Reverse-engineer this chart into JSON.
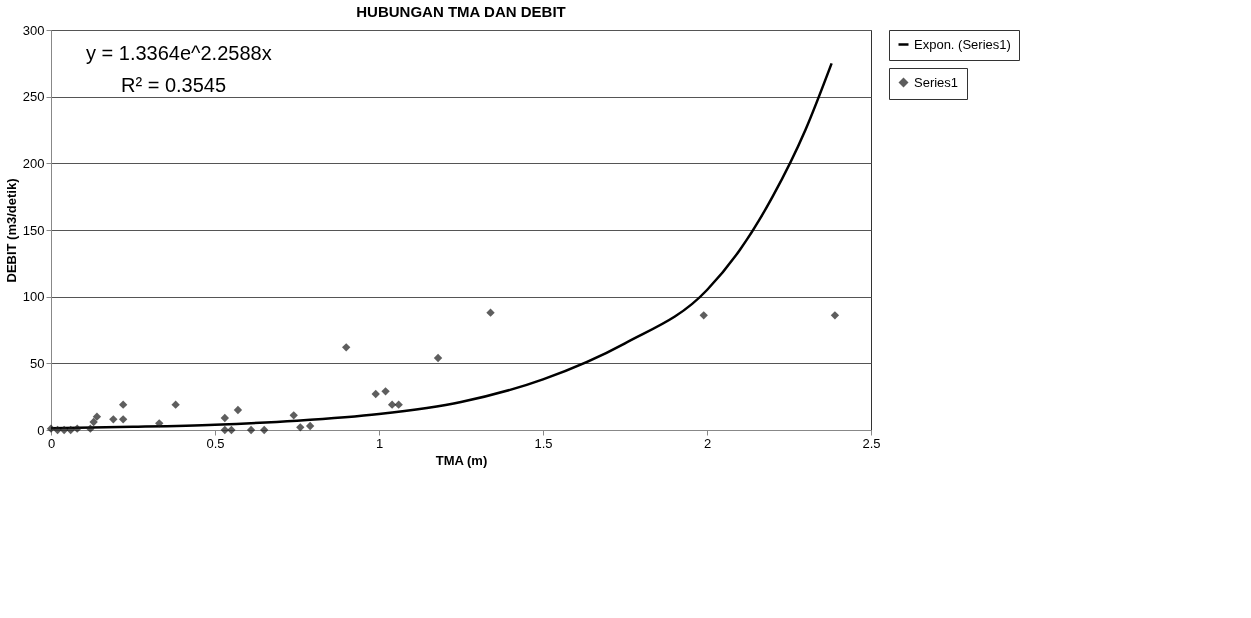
{
  "chart_data": {
    "type": "scatter",
    "title": "HUBUNGAN TMA DAN DEBIT",
    "xlabel": "TMA (m)",
    "ylabel": "DEBIT (m3/detik)",
    "xlim": [
      0,
      2.5
    ],
    "xticks": [
      0,
      0.5,
      1,
      1.5,
      2,
      2.5
    ],
    "ylim": [
      0,
      300
    ],
    "yticks": [
      0,
      50,
      100,
      150,
      200,
      250,
      300
    ],
    "grid": "y",
    "legend": "right",
    "annotations": [
      "y = 1.3364e^2.2588x",
      "R² = 0.3545"
    ],
    "series": [
      {
        "name": "Series1",
        "marker": "diamond",
        "color": "#1a1a1a",
        "x": [
          0.0,
          0.02,
          0.04,
          0.06,
          0.08,
          0.12,
          0.13,
          0.14,
          0.19,
          0.22,
          0.22,
          0.33,
          0.38,
          0.53,
          0.53,
          0.55,
          0.57,
          0.61,
          0.65,
          0.74,
          0.76,
          0.79,
          0.9,
          0.99,
          1.02,
          1.04,
          1.06,
          1.18,
          1.34,
          1.99,
          2.39
        ],
        "values": [
          1,
          0,
          0,
          0,
          1,
          1,
          6,
          10,
          8,
          8,
          19,
          5,
          19,
          9,
          0,
          0,
          15,
          0,
          0,
          11,
          2,
          3,
          62,
          27,
          29,
          19,
          19,
          54,
          88,
          86,
          86
        ]
      },
      {
        "name": "Expon. (Series1)",
        "type": "line",
        "color": "#000000",
        "x": [
          0,
          0.25,
          0.5,
          0.75,
          1,
          1.25,
          1.5,
          1.75,
          2,
          2.1,
          2.2,
          2.3,
          2.38
        ],
        "values": [
          1.3,
          2.4,
          4,
          7,
          12,
          21,
          38,
          65,
          105,
          135,
          175,
          225,
          275
        ]
      }
    ]
  }
}
